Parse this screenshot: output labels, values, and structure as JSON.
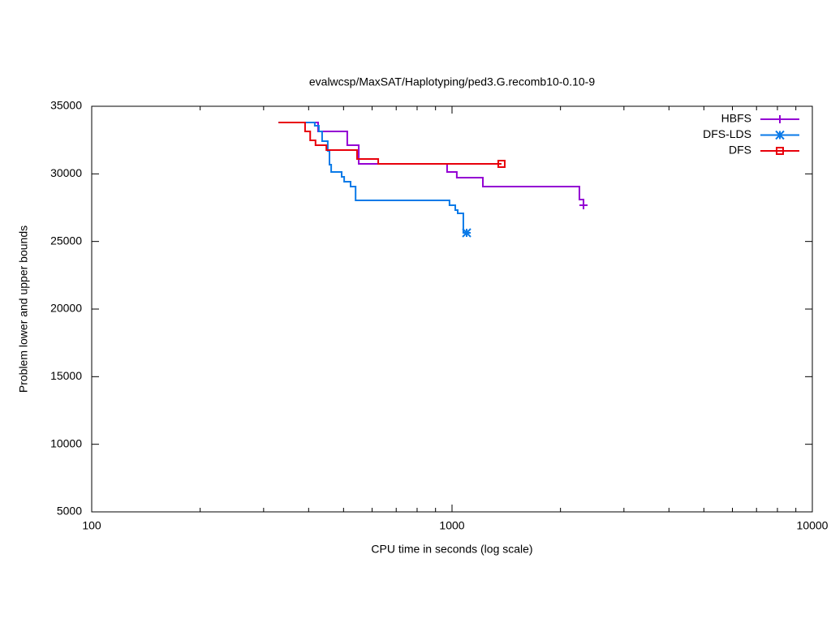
{
  "chart_data": {
    "type": "line",
    "title": "evalwcsp/MaxSAT/Haplotyping/ped3.G.recomb10-0.10-9",
    "x_label": "CPU time in seconds (log scale)",
    "y_label": "Problem lower and upper bounds",
    "xlog": true,
    "xlim": [
      100,
      10000
    ],
    "xticks": [
      100,
      1000,
      10000
    ],
    "ylim": [
      5000,
      35000
    ],
    "yticks": [
      5000,
      10000,
      15000,
      20000,
      25000,
      30000,
      35000
    ],
    "legend": "top-right",
    "series": [
      {
        "name": "HBFS",
        "color": "#9400d3",
        "marker": "plus",
        "x": [
          330,
          425,
          425,
          512,
          512,
          551,
          551,
          969,
          969,
          1031,
          1031,
          1218,
          1218,
          2257,
          2257,
          2317,
          2317
        ],
        "values": [
          33800,
          33800,
          33140,
          33140,
          32120,
          32120,
          30740,
          30740,
          30140,
          30140,
          29720,
          29720,
          29060,
          29060,
          28100,
          28100,
          27680
        ]
      },
      {
        "name": "DFS-LDS",
        "color": "#0a7ae8",
        "marker": "star",
        "x": [
          330,
          416,
          416,
          427,
          427,
          436,
          436,
          452,
          452,
          457,
          457,
          462,
          462,
          494,
          494,
          502,
          502,
          523,
          523,
          540,
          540,
          984,
          984,
          1021,
          1021,
          1037,
          1037,
          1075,
          1075,
          1098
        ],
        "values": [
          33800,
          33800,
          33560,
          33560,
          33140,
          33140,
          32420,
          32420,
          31700,
          31700,
          30680,
          30680,
          30140,
          30140,
          29780,
          29780,
          29420,
          29420,
          29060,
          29060,
          28040,
          28040,
          27680,
          27680,
          27320,
          27320,
          27080,
          27080,
          25640,
          25640
        ]
      },
      {
        "name": "DFS",
        "color": "#e8000b",
        "marker": "square",
        "x": [
          330,
          391,
          391,
          404,
          404,
          418,
          418,
          448,
          448,
          545,
          545,
          624,
          624,
          1372
        ],
        "values": [
          33800,
          33800,
          33140,
          33140,
          32480,
          32480,
          32120,
          32120,
          31760,
          31760,
          31100,
          31100,
          30740,
          30740
        ]
      }
    ]
  }
}
